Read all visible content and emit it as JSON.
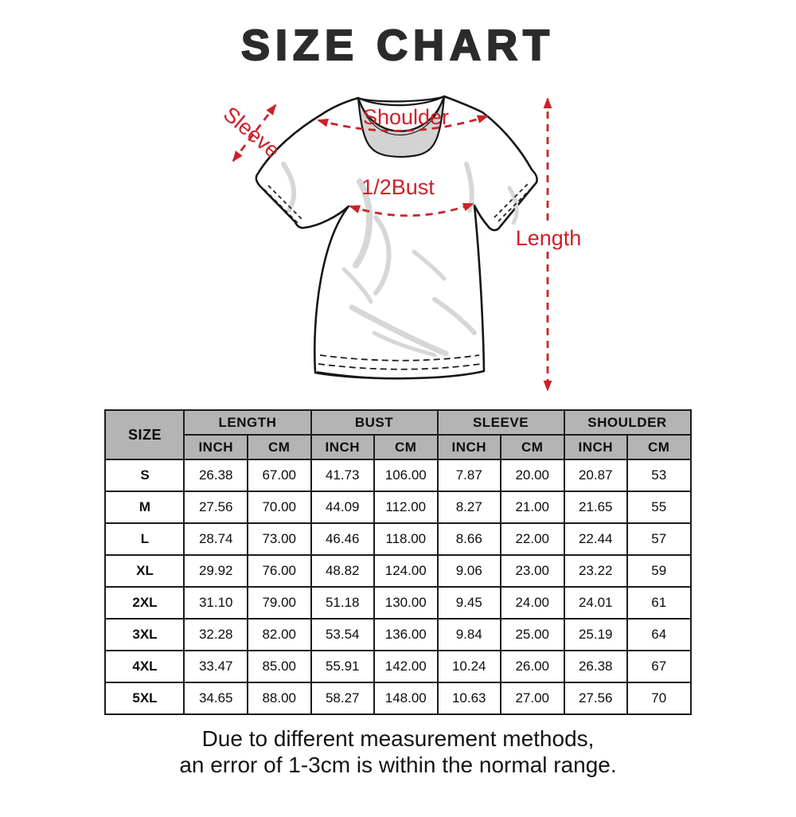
{
  "title": "SIZE CHART",
  "diagram": {
    "labels": {
      "sleeve": "Sleeve",
      "shoulder": "Shoulder",
      "bust": "1/2Bust",
      "length": "Length"
    },
    "accent_color": "#cd2128",
    "shirt_outline_color": "#161616",
    "collar_fill_color": "#d3d3d3"
  },
  "table": {
    "size_header": "SIZE",
    "groups": [
      "LENGTH",
      "BUST",
      "SLEEVE",
      "SHOULDER"
    ],
    "units": [
      "INCH",
      "CM"
    ],
    "header_bg_color": "#b4b4b4",
    "rows": [
      {
        "size": "S",
        "values": [
          "26.38",
          "67.00",
          "41.73",
          "106.00",
          "7.87",
          "20.00",
          "20.87",
          "53"
        ]
      },
      {
        "size": "M",
        "values": [
          "27.56",
          "70.00",
          "44.09",
          "112.00",
          "8.27",
          "21.00",
          "21.65",
          "55"
        ]
      },
      {
        "size": "L",
        "values": [
          "28.74",
          "73.00",
          "46.46",
          "118.00",
          "8.66",
          "22.00",
          "22.44",
          "57"
        ]
      },
      {
        "size": "XL",
        "values": [
          "29.92",
          "76.00",
          "48.82",
          "124.00",
          "9.06",
          "23.00",
          "23.22",
          "59"
        ]
      },
      {
        "size": "2XL",
        "values": [
          "31.10",
          "79.00",
          "51.18",
          "130.00",
          "9.45",
          "24.00",
          "24.01",
          "61"
        ]
      },
      {
        "size": "3XL",
        "values": [
          "32.28",
          "82.00",
          "53.54",
          "136.00",
          "9.84",
          "25.00",
          "25.19",
          "64"
        ]
      },
      {
        "size": "4XL",
        "values": [
          "33.47",
          "85.00",
          "55.91",
          "142.00",
          "10.24",
          "26.00",
          "26.38",
          "67"
        ]
      },
      {
        "size": "5XL",
        "values": [
          "34.65",
          "88.00",
          "58.27",
          "148.00",
          "10.63",
          "27.00",
          "27.56",
          "70"
        ]
      }
    ]
  },
  "note": {
    "line1": "Due to different measurement methods,",
    "line2": "an error of 1-3cm is within the normal range."
  }
}
